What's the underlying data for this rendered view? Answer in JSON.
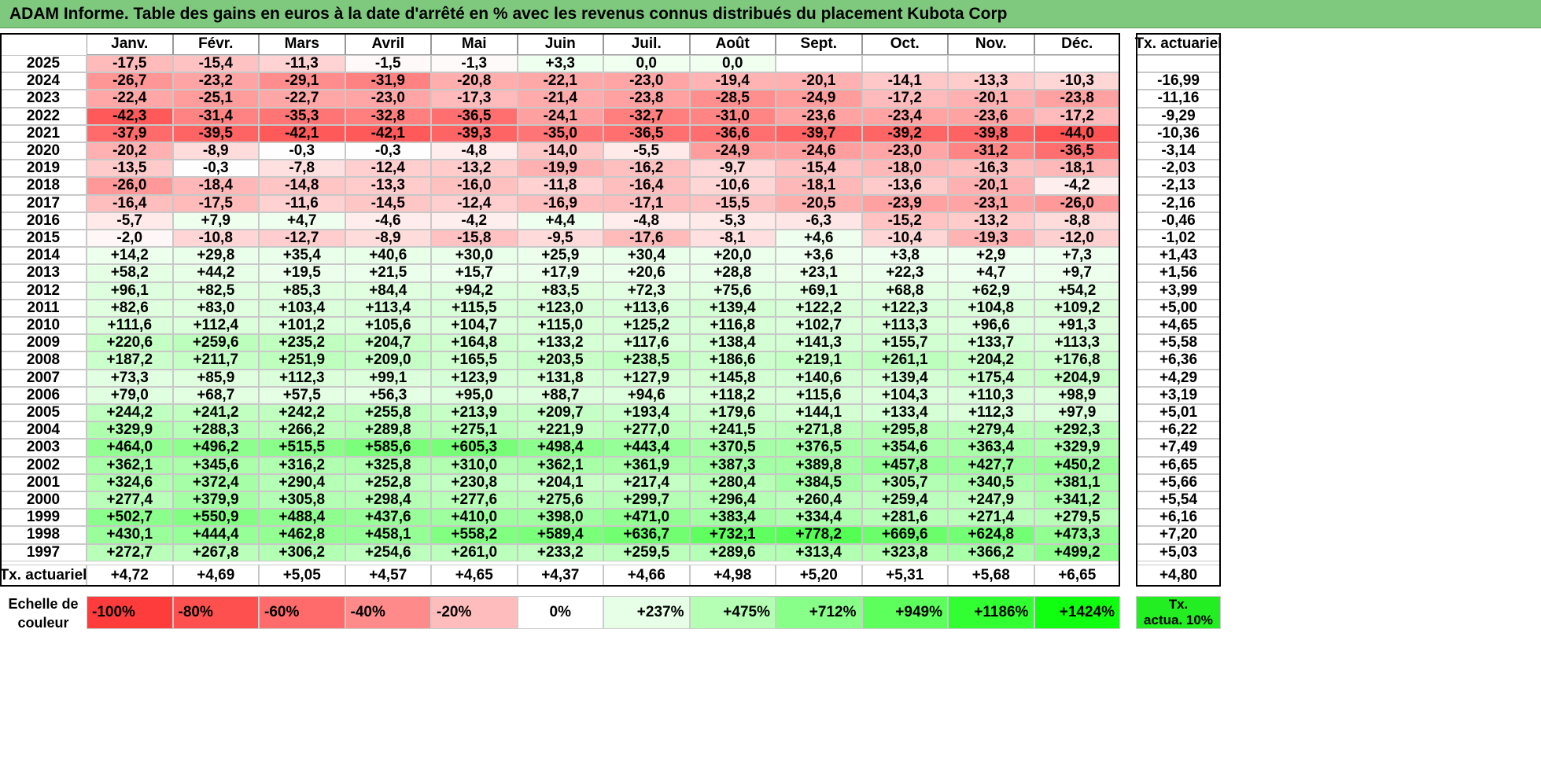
{
  "title": "ADAM Informe. Table des gains en euros à la date d'arrêté en % avec les revenus connus distribués du placement Kubota Corp",
  "chart_data": {
    "type": "table",
    "months": [
      "Janv.",
      "Févr.",
      "Mars",
      "Avril",
      "Mai",
      "Juin",
      "Juil.",
      "Août",
      "Sept.",
      "Oct.",
      "Nov.",
      "Déc."
    ],
    "rate_header": "Tx. actuariel",
    "rows": [
      {
        "year": "2025",
        "values": [
          "-17,5",
          "-15,4",
          "-11,3",
          "-1,5",
          "-1,3",
          "+3,3",
          "0,0",
          "0,0",
          "",
          "",
          "",
          ""
        ],
        "rate": ""
      },
      {
        "year": "2024",
        "values": [
          "-26,7",
          "-23,2",
          "-29,1",
          "-31,9",
          "-20,8",
          "-22,1",
          "-23,0",
          "-19,4",
          "-20,1",
          "-14,1",
          "-13,3",
          "-10,3"
        ],
        "rate": "-16,99"
      },
      {
        "year": "2023",
        "values": [
          "-22,4",
          "-25,1",
          "-22,7",
          "-23,0",
          "-17,3",
          "-21,4",
          "-23,8",
          "-28,5",
          "-24,9",
          "-17,2",
          "-20,1",
          "-23,8"
        ],
        "rate": "-11,16"
      },
      {
        "year": "2022",
        "values": [
          "-42,3",
          "-31,4",
          "-35,3",
          "-32,8",
          "-36,5",
          "-24,1",
          "-32,7",
          "-31,0",
          "-23,6",
          "-23,4",
          "-23,6",
          "-17,2"
        ],
        "rate": "-9,29"
      },
      {
        "year": "2021",
        "values": [
          "-37,9",
          "-39,5",
          "-42,1",
          "-42,1",
          "-39,3",
          "-35,0",
          "-36,5",
          "-36,6",
          "-39,7",
          "-39,2",
          "-39,8",
          "-44,0"
        ],
        "rate": "-10,36"
      },
      {
        "year": "2020",
        "values": [
          "-20,2",
          "-8,9",
          "-0,3",
          "-0,3",
          "-4,8",
          "-14,0",
          "-5,5",
          "-24,9",
          "-24,6",
          "-23,0",
          "-31,2",
          "-36,5"
        ],
        "rate": "-3,14"
      },
      {
        "year": "2019",
        "values": [
          "-13,5",
          "-0,3",
          "-7,8",
          "-12,4",
          "-13,2",
          "-19,9",
          "-16,2",
          "-9,7",
          "-15,4",
          "-18,0",
          "-16,3",
          "-18,1"
        ],
        "rate": "-2,03"
      },
      {
        "year": "2018",
        "values": [
          "-26,0",
          "-18,4",
          "-14,8",
          "-13,3",
          "-16,0",
          "-11,8",
          "-16,4",
          "-10,6",
          "-18,1",
          "-13,6",
          "-20,1",
          "-4,2"
        ],
        "rate": "-2,13"
      },
      {
        "year": "2017",
        "values": [
          "-16,4",
          "-17,5",
          "-11,6",
          "-14,5",
          "-12,4",
          "-16,9",
          "-17,1",
          "-15,5",
          "-20,5",
          "-23,9",
          "-23,1",
          "-26,0"
        ],
        "rate": "-2,16"
      },
      {
        "year": "2016",
        "values": [
          "-5,7",
          "+7,9",
          "+4,7",
          "-4,6",
          "-4,2",
          "+4,4",
          "-4,8",
          "-5,3",
          "-6,3",
          "-15,2",
          "-13,2",
          "-8,8"
        ],
        "rate": "-0,46"
      },
      {
        "year": "2015",
        "values": [
          "-2,0",
          "-10,8",
          "-12,7",
          "-8,9",
          "-15,8",
          "-9,5",
          "-17,6",
          "-8,1",
          "+4,6",
          "-10,4",
          "-19,3",
          "-12,0"
        ],
        "rate": "-1,02"
      },
      {
        "year": "2014",
        "values": [
          "+14,2",
          "+29,8",
          "+35,4",
          "+40,6",
          "+30,0",
          "+25,9",
          "+30,4",
          "+20,0",
          "+3,6",
          "+3,8",
          "+2,9",
          "+7,3"
        ],
        "rate": "+1,43"
      },
      {
        "year": "2013",
        "values": [
          "+58,2",
          "+44,2",
          "+19,5",
          "+21,5",
          "+15,7",
          "+17,9",
          "+20,6",
          "+28,8",
          "+23,1",
          "+22,3",
          "+4,7",
          "+9,7"
        ],
        "rate": "+1,56"
      },
      {
        "year": "2012",
        "values": [
          "+96,1",
          "+82,5",
          "+85,3",
          "+84,4",
          "+94,2",
          "+83,5",
          "+72,3",
          "+75,6",
          "+69,1",
          "+68,8",
          "+62,9",
          "+54,2"
        ],
        "rate": "+3,99"
      },
      {
        "year": "2011",
        "values": [
          "+82,6",
          "+83,0",
          "+103,4",
          "+113,4",
          "+115,5",
          "+123,0",
          "+113,6",
          "+139,4",
          "+122,2",
          "+122,3",
          "+104,8",
          "+109,2"
        ],
        "rate": "+5,00"
      },
      {
        "year": "2010",
        "values": [
          "+111,6",
          "+112,4",
          "+101,2",
          "+105,6",
          "+104,7",
          "+115,0",
          "+125,2",
          "+116,8",
          "+102,7",
          "+113,3",
          "+96,6",
          "+91,3"
        ],
        "rate": "+4,65"
      },
      {
        "year": "2009",
        "values": [
          "+220,6",
          "+259,6",
          "+235,2",
          "+204,7",
          "+164,8",
          "+133,2",
          "+117,6",
          "+138,4",
          "+141,3",
          "+155,7",
          "+133,7",
          "+113,3"
        ],
        "rate": "+5,58"
      },
      {
        "year": "2008",
        "values": [
          "+187,2",
          "+211,7",
          "+251,9",
          "+209,0",
          "+165,5",
          "+203,5",
          "+238,5",
          "+186,6",
          "+219,1",
          "+261,1",
          "+204,2",
          "+176,8"
        ],
        "rate": "+6,36"
      },
      {
        "year": "2007",
        "values": [
          "+73,3",
          "+85,9",
          "+112,3",
          "+99,1",
          "+123,9",
          "+131,8",
          "+127,9",
          "+145,8",
          "+140,6",
          "+139,4",
          "+175,4",
          "+204,9"
        ],
        "rate": "+4,29"
      },
      {
        "year": "2006",
        "values": [
          "+79,0",
          "+68,7",
          "+57,5",
          "+56,3",
          "+95,0",
          "+88,7",
          "+94,6",
          "+118,2",
          "+115,6",
          "+104,3",
          "+110,3",
          "+98,9"
        ],
        "rate": "+3,19"
      },
      {
        "year": "2005",
        "values": [
          "+244,2",
          "+241,2",
          "+242,2",
          "+255,8",
          "+213,9",
          "+209,7",
          "+193,4",
          "+179,6",
          "+144,1",
          "+133,4",
          "+112,3",
          "+97,9"
        ],
        "rate": "+5,01"
      },
      {
        "year": "2004",
        "values": [
          "+329,9",
          "+288,3",
          "+266,2",
          "+289,8",
          "+275,1",
          "+221,9",
          "+277,0",
          "+241,5",
          "+271,8",
          "+295,8",
          "+279,4",
          "+292,3"
        ],
        "rate": "+6,22"
      },
      {
        "year": "2003",
        "values": [
          "+464,0",
          "+496,2",
          "+515,5",
          "+585,6",
          "+605,3",
          "+498,4",
          "+443,4",
          "+370,5",
          "+376,5",
          "+354,6",
          "+363,4",
          "+329,9"
        ],
        "rate": "+7,49"
      },
      {
        "year": "2002",
        "values": [
          "+362,1",
          "+345,6",
          "+316,2",
          "+325,8",
          "+310,0",
          "+362,1",
          "+361,9",
          "+387,3",
          "+389,8",
          "+457,8",
          "+427,7",
          "+450,2"
        ],
        "rate": "+6,65"
      },
      {
        "year": "2001",
        "values": [
          "+324,6",
          "+372,4",
          "+290,4",
          "+252,8",
          "+230,8",
          "+204,1",
          "+217,4",
          "+280,4",
          "+384,5",
          "+305,7",
          "+340,5",
          "+381,1"
        ],
        "rate": "+5,66"
      },
      {
        "year": "2000",
        "values": [
          "+277,4",
          "+379,9",
          "+305,8",
          "+298,4",
          "+277,6",
          "+275,6",
          "+299,7",
          "+296,4",
          "+260,4",
          "+259,4",
          "+247,9",
          "+341,2"
        ],
        "rate": "+5,54"
      },
      {
        "year": "1999",
        "values": [
          "+502,7",
          "+550,9",
          "+488,4",
          "+437,6",
          "+410,0",
          "+398,0",
          "+471,0",
          "+383,4",
          "+334,4",
          "+281,6",
          "+271,4",
          "+279,5"
        ],
        "rate": "+6,16"
      },
      {
        "year": "1998",
        "values": [
          "+430,1",
          "+444,4",
          "+462,8",
          "+458,1",
          "+558,2",
          "+589,4",
          "+636,7",
          "+732,1",
          "+778,2",
          "+669,6",
          "+624,8",
          "+473,3"
        ],
        "rate": "+7,20"
      },
      {
        "year": "1997",
        "values": [
          "+272,7",
          "+267,8",
          "+306,2",
          "+254,6",
          "+261,0",
          "+233,2",
          "+259,5",
          "+289,6",
          "+313,4",
          "+323,8",
          "+366,2",
          "+499,2"
        ],
        "rate": "+5,03"
      }
    ],
    "footer": {
      "label": "Tx. actuariel",
      "values": [
        "+4,72",
        "+4,69",
        "+5,05",
        "+4,57",
        "+4,65",
        "+4,37",
        "+4,66",
        "+4,98",
        "+5,20",
        "+5,31",
        "+5,68",
        "+6,65"
      ],
      "rate": "+4,80"
    },
    "color_scale": {
      "label_line1": "Echelle de",
      "label_line2": "couleur",
      "steps": [
        "-100%",
        "-80%",
        "-60%",
        "-40%",
        "-20%",
        "0%",
        "+237%",
        "+475%",
        "+712%",
        "+949%",
        "+1186%",
        "+1424%"
      ],
      "step_colors": [
        "#ff3c3c",
        "#ff5050",
        "#ff6a6a",
        "#ff8a8a",
        "#ffbcbc",
        "#ffffff",
        "#e6ffe6",
        "#b4ffb4",
        "#88ff88",
        "#5cff5c",
        "#32ff32",
        "#10ff10"
      ],
      "rate_label_line1": "Tx.",
      "rate_label_line2": "actua. 10%",
      "rate_color": "#22ee22"
    },
    "colors": {
      "title_bg": "#7fc97f",
      "neg_max": "#ff5050",
      "pos_max": "#33ff33"
    }
  }
}
